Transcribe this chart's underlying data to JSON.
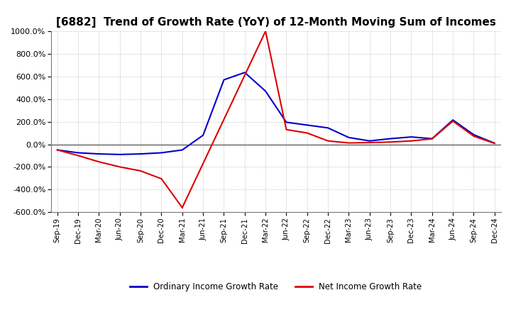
{
  "title": "[6882]  Trend of Growth Rate (YoY) of 12-Month Moving Sum of Incomes",
  "title_fontsize": 11,
  "background_color": "#ffffff",
  "plot_background_color": "#ffffff",
  "grid_color": "#b0b0b0",
  "ylim": [
    -600,
    1000
  ],
  "yticks": [
    -600,
    -400,
    -200,
    0,
    200,
    400,
    600,
    800,
    1000
  ],
  "legend_labels": [
    "Ordinary Income Growth Rate",
    "Net Income Growth Rate"
  ],
  "legend_colors": [
    "#0000cc",
    "#dd0000"
  ],
  "x_labels": [
    "Sep-19",
    "Dec-19",
    "Mar-20",
    "Jun-20",
    "Sep-20",
    "Dec-20",
    "Mar-21",
    "Jun-21",
    "Sep-21",
    "Dec-21",
    "Mar-22",
    "Jun-22",
    "Sep-22",
    "Dec-22",
    "Mar-23",
    "Jun-23",
    "Sep-23",
    "Dec-23",
    "Mar-24",
    "Jun-24",
    "Sep-24",
    "Dec-24"
  ],
  "ordinary_income": [
    -50,
    -75,
    -85,
    -90,
    -85,
    -75,
    -50,
    80,
    570,
    635,
    470,
    195,
    170,
    145,
    60,
    30,
    50,
    65,
    50,
    215,
    85,
    10
  ],
  "net_income_seg1_x": [
    0,
    1,
    2,
    3,
    4,
    5,
    6
  ],
  "net_income_seg1_y": [
    -50,
    -100,
    -155,
    -200,
    -235,
    -305,
    -560
  ],
  "net_income_seg2_x": [
    10,
    11,
    12,
    13,
    14,
    15,
    16,
    17,
    18,
    19,
    20,
    21
  ],
  "net_income_seg2_y": [
    1000,
    130,
    100,
    30,
    12,
    15,
    20,
    30,
    48,
    205,
    72,
    8
  ]
}
